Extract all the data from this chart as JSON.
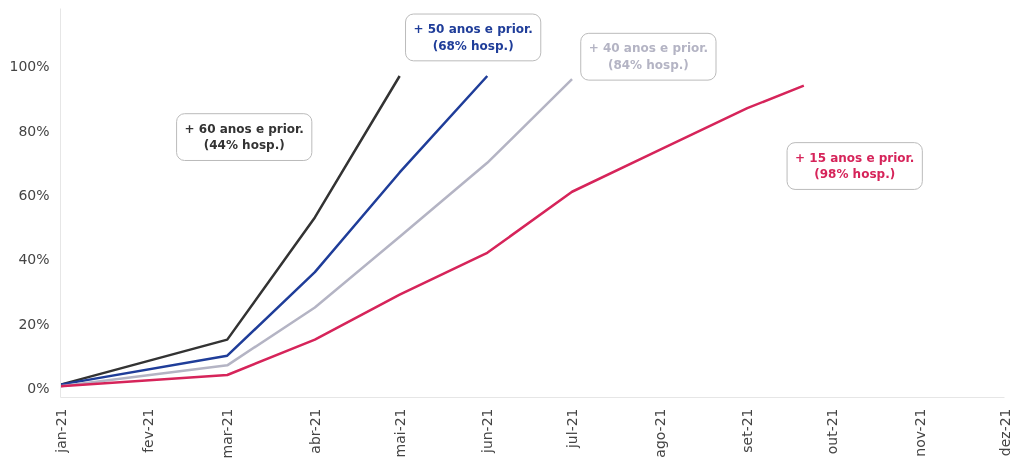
{
  "chart_data": {
    "type": "line",
    "line_style": "solid",
    "marker": "none",
    "grid": false,
    "x": [
      "2021-01",
      "2021-03",
      "2021-04",
      "2021-05"
    ],
    "series": [
      {
        "name": "+ 60 anos e prior.\n(44% hosp.)",
        "color": "#333333",
        "values": [
          1,
          15,
          53,
          97
        ]
      },
      {
        "name": "+ 50 anos e prior.\n(68% hosp.)",
        "color": "#1f3d99",
        "x": [
          "2021-01",
          "2021-03",
          "2021-04",
          "2021-05",
          "2021-06"
        ],
        "values": [
          1,
          10,
          36,
          67,
          97
        ]
      },
      {
        "name": "+ 40 anos e prior.\n(84% hosp.)",
        "color": "#b4b4c4",
        "x": [
          "2021-01",
          "2021-03",
          "2021-04",
          "2021-05",
          "2021-06",
          "2021-07"
        ],
        "values": [
          0.5,
          7,
          25,
          47,
          70,
          96
        ]
      },
      {
        "name": "+ 15 anos e prior.\n(98% hosp.)",
        "color": "#d6245a",
        "x": [
          "2021-01",
          "2021-03",
          "2021-04",
          "2021-05",
          "2021-06",
          "2021-07",
          "2021-08",
          "2021-09",
          "2021-09-21"
        ],
        "values": [
          0.5,
          4,
          15,
          29,
          42,
          61,
          74,
          87,
          94
        ]
      }
    ],
    "xlim": [
      "2021-01",
      "2021-12"
    ],
    "xticks": [
      {
        "value": "2021-01",
        "label": "jan-21"
      },
      {
        "value": "2021-02",
        "label": "fev-21"
      },
      {
        "value": "2021-03",
        "label": "mar-21"
      },
      {
        "value": "2021-04",
        "label": "abr-21"
      },
      {
        "value": "2021-05",
        "label": "mai-21"
      },
      {
        "value": "2021-06",
        "label": "jun-21"
      },
      {
        "value": "2021-07",
        "label": "jul-21"
      },
      {
        "value": "2021-08",
        "label": "ago-21"
      },
      {
        "value": "2021-09",
        "label": "set-21"
      },
      {
        "value": "2021-10",
        "label": "out-21"
      },
      {
        "value": "2021-11",
        "label": "nov-21"
      },
      {
        "value": "2021-12",
        "label": "dez-21"
      }
    ],
    "ylim": [
      -3,
      118
    ],
    "yticks": [
      {
        "value": 0,
        "label": "0%"
      },
      {
        "value": 20,
        "label": "20%"
      },
      {
        "value": 40,
        "label": "40%"
      },
      {
        "value": 60,
        "label": "60%"
      },
      {
        "value": 80,
        "label": "80%"
      },
      {
        "value": 100,
        "label": "100%"
      }
    ]
  }
}
